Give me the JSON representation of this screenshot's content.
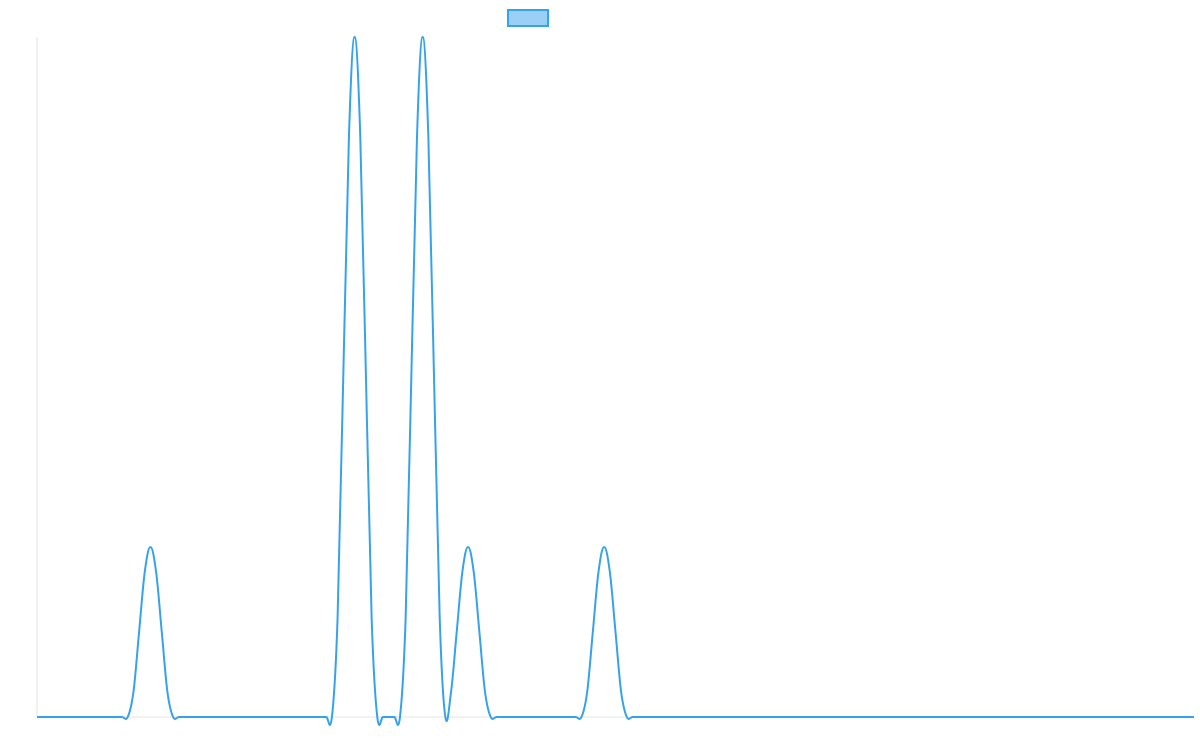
{
  "chart_data": {
    "type": "line",
    "title": "",
    "xlabel": "",
    "ylabel": "",
    "grid": false,
    "legend": {
      "position": "top-center",
      "shows_swatch_only": true
    },
    "xlim": [
      0,
      1020
    ],
    "ylim": [
      0,
      600
    ],
    "x_spacing": 5,
    "peak_half_width": 20,
    "peaks": [
      {
        "center": 100,
        "height": 150
      },
      {
        "center": 280,
        "height": 600
      },
      {
        "center": 340,
        "height": 600
      },
      {
        "center": 380,
        "height": 150
      },
      {
        "center": 500,
        "height": 150
      }
    ],
    "series": [
      {
        "name": "",
        "color": "#36a2eb",
        "fill_color": "#9ad0f5"
      }
    ]
  }
}
